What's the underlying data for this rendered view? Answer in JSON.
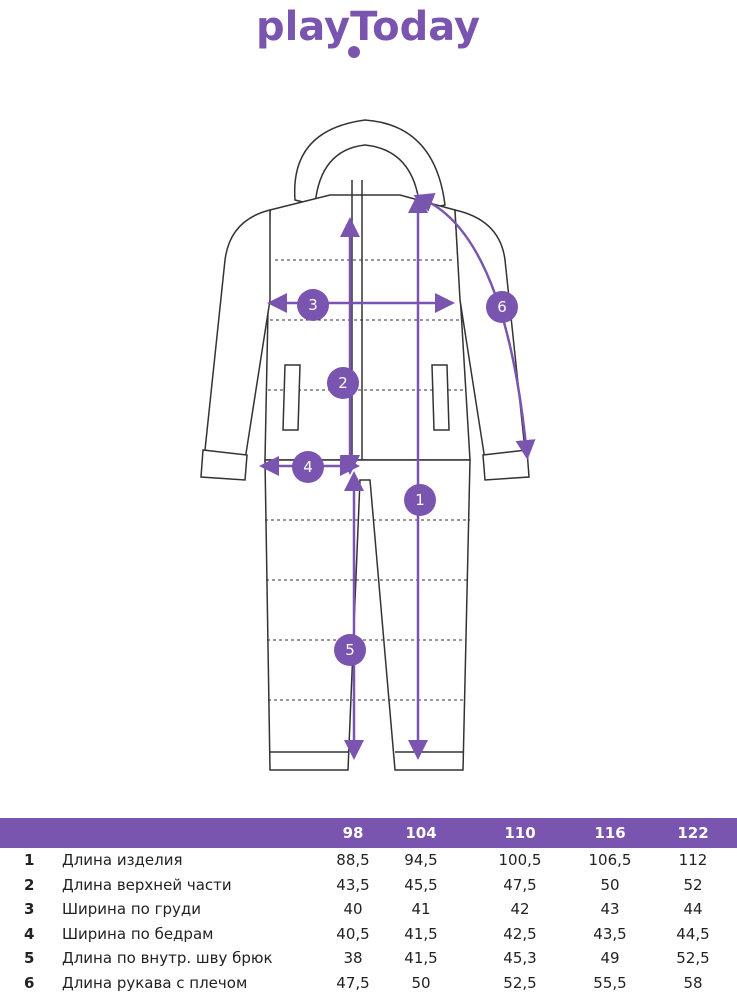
{
  "brand": {
    "logo_text": "playToday",
    "color": "#7a55b0"
  },
  "diagram": {
    "markers": [
      "1",
      "2",
      "3",
      "4",
      "5",
      "6"
    ],
    "garment": "snowsuit-technical-sketch"
  },
  "table": {
    "sizes": [
      "98",
      "104",
      "110",
      "116",
      "122"
    ],
    "rows": [
      {
        "num": "1",
        "label": "Длина изделия",
        "values": [
          "88,5",
          "94,5",
          "100,5",
          "106,5",
          "112"
        ]
      },
      {
        "num": "2",
        "label": "Длина верхней части",
        "values": [
          "43,5",
          "45,5",
          "47,5",
          "50",
          "52"
        ]
      },
      {
        "num": "3",
        "label": "Ширина по груди",
        "values": [
          "40",
          "41",
          "42",
          "43",
          "44"
        ]
      },
      {
        "num": "4",
        "label": "Ширина по бедрам",
        "values": [
          "40,5",
          "41,5",
          "42,5",
          "43,5",
          "44,5"
        ]
      },
      {
        "num": "5",
        "label": "Длина по внутр. шву брюк",
        "values": [
          "38",
          "41,5",
          "45,3",
          "49",
          "52,5"
        ]
      },
      {
        "num": "6",
        "label": "Длина рукава с плечом",
        "values": [
          "47,5",
          "50",
          "52,5",
          "55,5",
          "58"
        ]
      }
    ]
  }
}
